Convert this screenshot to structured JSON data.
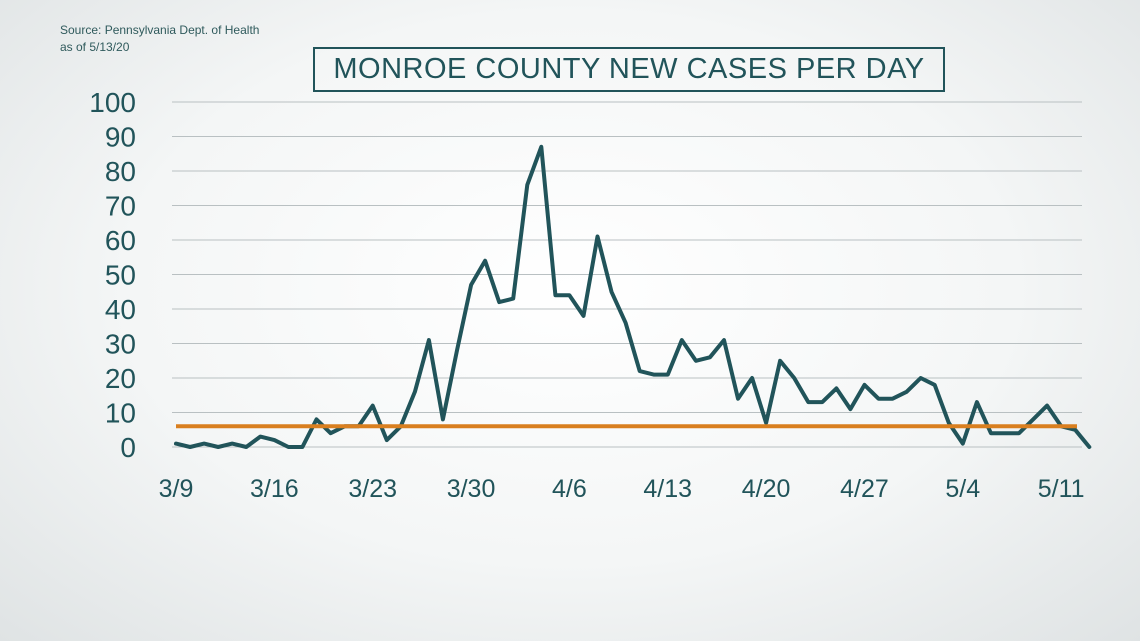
{
  "source": {
    "line1": "Source: Pennsylvania Dept. of Health",
    "line2": "as of 5/13/20"
  },
  "chart_data": {
    "type": "line",
    "title": "MONROE COUNTY NEW CASES PER DAY",
    "xlabel": "",
    "ylabel": "",
    "ylim": [
      0,
      100
    ],
    "yticks": [
      0,
      10,
      20,
      30,
      40,
      50,
      60,
      70,
      80,
      90,
      100
    ],
    "xtick_labels": [
      "3/9",
      "3/16",
      "3/23",
      "3/30",
      "4/6",
      "4/13",
      "4/20",
      "4/27",
      "5/4",
      "5/11"
    ],
    "grid": true,
    "legend": "none",
    "colors": {
      "series": "#21545a",
      "reference": "#d97f1f",
      "text": "#21545a"
    },
    "x": [
      "3/9",
      "3/10",
      "3/11",
      "3/12",
      "3/13",
      "3/14",
      "3/15",
      "3/16",
      "3/17",
      "3/18",
      "3/19",
      "3/20",
      "3/21",
      "3/22",
      "3/23",
      "3/24",
      "3/25",
      "3/26",
      "3/27",
      "3/28",
      "3/29",
      "3/30",
      "3/31",
      "4/1",
      "4/2",
      "4/3",
      "4/4",
      "4/5",
      "4/6",
      "4/7",
      "4/8",
      "4/9",
      "4/10",
      "4/11",
      "4/12",
      "4/13",
      "4/14",
      "4/15",
      "4/16",
      "4/17",
      "4/18",
      "4/19",
      "4/20",
      "4/21",
      "4/22",
      "4/23",
      "4/24",
      "4/25",
      "4/26",
      "4/27",
      "4/28",
      "4/29",
      "4/30",
      "5/1",
      "5/2",
      "5/3",
      "5/4",
      "5/5",
      "5/6",
      "5/7",
      "5/8",
      "5/9",
      "5/10",
      "5/11",
      "5/12",
      "5/13"
    ],
    "series": [
      {
        "values": [
          1,
          0,
          1,
          0,
          1,
          0,
          3,
          2,
          0,
          0,
          8,
          4,
          6,
          6,
          12,
          2,
          6,
          16,
          31,
          8,
          28,
          47,
          54,
          42,
          43,
          76,
          87,
          44,
          44,
          38,
          61,
          45,
          36,
          22,
          21,
          21,
          31,
          25,
          26,
          31,
          14,
          20,
          7,
          25,
          20,
          13,
          13,
          17,
          11,
          18,
          14,
          14,
          16,
          20,
          18,
          7,
          1,
          13,
          4,
          4,
          4,
          8,
          12,
          6,
          5,
          0
        ]
      }
    ],
    "reference_line": {
      "value": 6
    }
  }
}
